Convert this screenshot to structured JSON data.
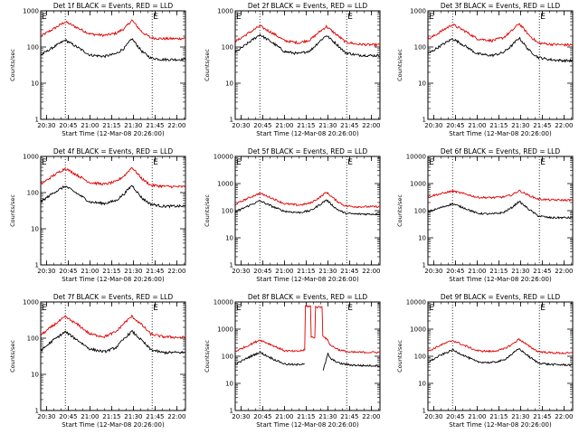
{
  "chart_data": [
    {
      "type": "line",
      "title": "Det 1f BLACK = Events, RED = LLD",
      "xlabel": "Start Time (12-Mar-08 20:26:00)",
      "ylabel": "Counts/sec",
      "yscale": "log",
      "ylim": [
        1,
        1000
      ],
      "y_ticks": [
        "1",
        "10",
        "100",
        "1000"
      ],
      "x_ticks": [
        "20:30",
        "20:45",
        "21:00",
        "21:15",
        "21:30",
        "21:45",
        "22:00"
      ],
      "xlim": [
        "20:26",
        "22:06"
      ],
      "vlines": [
        "20:43",
        "21:43"
      ],
      "corner_marks": [
        "E",
        "E"
      ],
      "series": [
        {
          "color": "#e00000",
          "x": [
            "20:26",
            "20:35",
            "20:43",
            "20:52",
            "21:00",
            "21:10",
            "21:18",
            "21:24",
            "21:29",
            "21:36",
            "21:42",
            "21:50",
            "22:00",
            "22:06"
          ],
          "values": [
            200,
            320,
            500,
            330,
            230,
            210,
            240,
            330,
            550,
            260,
            180,
            170,
            170,
            175
          ]
        },
        {
          "color": "#000000",
          "x": [
            "20:26",
            "20:35",
            "20:43",
            "20:52",
            "21:00",
            "21:10",
            "21:18",
            "21:24",
            "21:29",
            "21:36",
            "21:42",
            "21:50",
            "22:00",
            "22:06"
          ],
          "values": [
            60,
            100,
            155,
            95,
            60,
            55,
            65,
            95,
            170,
            75,
            50,
            45,
            45,
            45
          ]
        }
      ]
    },
    {
      "type": "line",
      "title": "Det 2f BLACK = Events, RED = LLD",
      "xlabel": "Start Time (12-Mar-08 20:26:00)",
      "ylabel": "Counts/sec",
      "yscale": "log",
      "ylim": [
        1,
        1000
      ],
      "y_ticks": [
        "1",
        "10",
        "100",
        "1000"
      ],
      "x_ticks": [
        "20:30",
        "20:45",
        "21:00",
        "21:15",
        "21:30",
        "21:45",
        "22:00"
      ],
      "xlim": [
        "20:26",
        "22:06"
      ],
      "vlines": [
        "20:43",
        "21:43"
      ],
      "corner_marks": [
        "E",
        "E"
      ],
      "series": [
        {
          "color": "#e00000",
          "x": [
            "20:26",
            "20:35",
            "20:43",
            "20:52",
            "21:00",
            "21:10",
            "21:18",
            "21:24",
            "21:29",
            "21:36",
            "21:42",
            "21:50",
            "22:00",
            "22:06"
          ],
          "values": [
            140,
            240,
            380,
            240,
            150,
            130,
            160,
            260,
            370,
            220,
            140,
            120,
            115,
            115
          ]
        },
        {
          "color": "#000000",
          "x": [
            "20:26",
            "20:35",
            "20:43",
            "20:52",
            "21:00",
            "21:10",
            "21:18",
            "21:24",
            "21:29",
            "21:36",
            "21:42",
            "21:50",
            "22:00",
            "22:06"
          ],
          "values": [
            70,
            130,
            220,
            130,
            75,
            65,
            80,
            140,
            210,
            120,
            70,
            60,
            58,
            58
          ]
        }
      ]
    },
    {
      "type": "line",
      "title": "Det 3f BLACK = Events, RED = LLD",
      "xlabel": "Start Time (12-Mar-08 20:26:00)",
      "ylabel": "Counts/sec",
      "yscale": "log",
      "ylim": [
        1,
        1000
      ],
      "y_ticks": [
        "1",
        "10",
        "100",
        "1000"
      ],
      "x_ticks": [
        "20:30",
        "20:45",
        "21:00",
        "21:15",
        "21:30",
        "21:45",
        "22:00"
      ],
      "xlim": [
        "20:26",
        "22:06"
      ],
      "vlines": [
        "20:43",
        "21:43"
      ],
      "corner_marks": [
        "E",
        "E"
      ],
      "series": [
        {
          "color": "#e00000",
          "x": [
            "20:26",
            "20:35",
            "20:43",
            "20:52",
            "21:00",
            "21:10",
            "21:18",
            "21:24",
            "21:29",
            "21:36",
            "21:42",
            "21:50",
            "22:00",
            "22:06"
          ],
          "values": [
            160,
            270,
            420,
            270,
            170,
            150,
            180,
            280,
            450,
            210,
            130,
            120,
            115,
            115
          ]
        },
        {
          "color": "#000000",
          "x": [
            "20:26",
            "20:35",
            "20:43",
            "20:52",
            "21:00",
            "21:10",
            "21:18",
            "21:24",
            "21:29",
            "21:36",
            "21:42",
            "21:50",
            "22:00",
            "22:06"
          ],
          "values": [
            65,
            110,
            170,
            105,
            65,
            58,
            70,
            110,
            180,
            80,
            52,
            45,
            42,
            42
          ]
        }
      ]
    },
    {
      "type": "line",
      "title": "Det 4f BLACK = Events, RED = LLD",
      "xlabel": "Start Time (12-Mar-08 20:26:00)",
      "ylabel": "Counts/sec",
      "yscale": "log",
      "ylim": [
        1,
        1000
      ],
      "y_ticks": [
        "1",
        "10",
        "100",
        "1000"
      ],
      "x_ticks": [
        "20:30",
        "20:45",
        "21:00",
        "21:15",
        "21:30",
        "21:45",
        "22:00"
      ],
      "xlim": [
        "20:26",
        "22:06"
      ],
      "vlines": [
        "20:43",
        "21:43"
      ],
      "corner_marks": [
        "E",
        "E"
      ],
      "series": [
        {
          "color": "#e00000",
          "x": [
            "20:26",
            "20:35",
            "20:43",
            "20:52",
            "21:00",
            "21:10",
            "21:18",
            "21:24",
            "21:29",
            "21:36",
            "21:42",
            "21:50",
            "22:00",
            "22:06"
          ],
          "values": [
            170,
            300,
            470,
            290,
            190,
            170,
            200,
            300,
            500,
            240,
            160,
            150,
            145,
            145
          ]
        },
        {
          "color": "#000000",
          "x": [
            "20:26",
            "20:35",
            "20:43",
            "20:52",
            "21:00",
            "21:10",
            "21:18",
            "21:24",
            "21:29",
            "21:36",
            "21:42",
            "21:50",
            "22:00",
            "22:06"
          ],
          "values": [
            55,
            100,
            150,
            90,
            55,
            50,
            60,
            95,
            160,
            70,
            48,
            42,
            42,
            42
          ]
        }
      ]
    },
    {
      "type": "line",
      "title": "Det 5f BLACK = Events, RED = LLD",
      "xlabel": "Start Time (12-Mar-08 20:26:00)",
      "ylabel": "Counts/sec",
      "yscale": "log",
      "ylim": [
        1,
        10000
      ],
      "y_ticks": [
        "1",
        "10",
        "100",
        "1000",
        "10000"
      ],
      "x_ticks": [
        "20:30",
        "20:45",
        "21:00",
        "21:15",
        "21:30",
        "21:45",
        "22:00"
      ],
      "xlim": [
        "20:26",
        "22:06"
      ],
      "vlines": [
        "20:43",
        "21:43"
      ],
      "corner_marks": [
        "E",
        "E"
      ],
      "series": [
        {
          "color": "#e00000",
          "x": [
            "20:26",
            "20:35",
            "20:43",
            "20:52",
            "21:00",
            "21:10",
            "21:18",
            "21:24",
            "21:29",
            "21:36",
            "21:42",
            "21:50",
            "22:00",
            "22:06"
          ],
          "values": [
            170,
            290,
            440,
            280,
            180,
            160,
            190,
            300,
            480,
            230,
            150,
            140,
            140,
            140
          ]
        },
        {
          "color": "#000000",
          "x": [
            "20:26",
            "20:35",
            "20:43",
            "20:52",
            "21:00",
            "21:10",
            "21:18",
            "21:24",
            "21:29",
            "21:36",
            "21:42",
            "21:50",
            "22:00",
            "22:06"
          ],
          "values": [
            90,
            150,
            230,
            140,
            95,
            85,
            100,
            160,
            250,
            115,
            80,
            75,
            75,
            75
          ]
        }
      ]
    },
    {
      "type": "line",
      "title": "Det 6f BLACK = Events, RED = LLD",
      "xlabel": "Start Time (12-Mar-08 20:26:00)",
      "ylabel": "Counts/sec",
      "yscale": "log",
      "ylim": [
        1,
        10000
      ],
      "y_ticks": [
        "1",
        "10",
        "100",
        "1000",
        "10000"
      ],
      "x_ticks": [
        "20:30",
        "20:45",
        "21:00",
        "21:15",
        "21:30",
        "21:45",
        "22:00"
      ],
      "xlim": [
        "20:26",
        "22:06"
      ],
      "vlines": [
        "20:43",
        "21:43"
      ],
      "corner_marks": [
        "E",
        "E"
      ],
      "series": [
        {
          "color": "#e00000",
          "x": [
            "20:26",
            "20:35",
            "20:43",
            "20:52",
            "21:00",
            "21:10",
            "21:18",
            "21:24",
            "21:29",
            "21:36",
            "21:42",
            "21:50",
            "22:00",
            "22:06"
          ],
          "values": [
            330,
            420,
            530,
            410,
            310,
            300,
            320,
            380,
            550,
            360,
            270,
            250,
            245,
            245
          ]
        },
        {
          "color": "#000000",
          "x": [
            "20:26",
            "20:35",
            "20:43",
            "20:52",
            "21:00",
            "21:10",
            "21:18",
            "21:24",
            "21:29",
            "21:36",
            "21:42",
            "21:50",
            "22:00",
            "22:06"
          ],
          "values": [
            90,
            130,
            180,
            120,
            80,
            75,
            85,
            130,
            220,
            110,
            65,
            55,
            55,
            55
          ]
        }
      ]
    },
    {
      "type": "line",
      "title": "Det 7f BLACK = Events, RED = LLD",
      "xlabel": "Start Time (12-Mar-08 20:26:00)",
      "ylabel": "Counts/sec",
      "yscale": "log",
      "ylim": [
        1,
        1000
      ],
      "y_ticks": [
        "1",
        "10",
        "100",
        "1000"
      ],
      "x_ticks": [
        "20:30",
        "20:45",
        "21:00",
        "21:15",
        "21:30",
        "21:45",
        "22:00"
      ],
      "xlim": [
        "20:26",
        "22:06"
      ],
      "vlines": [
        "20:43",
        "21:43"
      ],
      "corner_marks": [
        "E",
        "E"
      ],
      "series": [
        {
          "color": "#e00000",
          "x": [
            "20:26",
            "20:35",
            "20:43",
            "20:52",
            "21:00",
            "21:10",
            "21:18",
            "21:24",
            "21:29",
            "21:36",
            "21:42",
            "21:50",
            "22:00",
            "22:06"
          ],
          "values": [
            120,
            230,
            390,
            230,
            130,
            110,
            150,
            270,
            400,
            230,
            130,
            110,
            105,
            105
          ]
        },
        {
          "color": "#000000",
          "x": [
            "20:26",
            "20:35",
            "20:43",
            "20:52",
            "21:00",
            "21:10",
            "21:18",
            "21:24",
            "21:29",
            "21:36",
            "21:42",
            "21:50",
            "22:00",
            "22:06"
          ],
          "values": [
            45,
            90,
            150,
            85,
            50,
            42,
            55,
            100,
            155,
            85,
            48,
            40,
            40,
            40
          ]
        }
      ]
    },
    {
      "type": "line",
      "title": "Det 8f BLACK = Events, RED = LLD",
      "xlabel": "Start Time (12-Mar-08 20:26:00)",
      "ylabel": "Counts/sec",
      "yscale": "log",
      "ylim": [
        1,
        10000
      ],
      "y_ticks": [
        "1",
        "10",
        "100",
        "1000",
        "10000"
      ],
      "x_ticks": [
        "20:30",
        "20:45",
        "21:00",
        "21:15",
        "21:30",
        "21:45",
        "22:00"
      ],
      "xlim": [
        "20:26",
        "22:06"
      ],
      "vlines": [
        "20:43",
        "21:43"
      ],
      "corner_marks": [
        "E",
        "E"
      ],
      "series": [
        {
          "color": "#e00000",
          "x": [
            "20:26",
            "20:35",
            "20:43",
            "20:52",
            "21:00",
            "21:08",
            "21:14",
            "21:14.5",
            "21:18",
            "21:19",
            "21:21",
            "21:22",
            "21:26",
            "21:26.5",
            "21:30",
            "21:32",
            "21:38",
            "21:45",
            "21:55",
            "22:06"
          ],
          "values": [
            150,
            250,
            400,
            250,
            160,
            150,
            170,
            7000,
            7000,
            500,
            500,
            6500,
            6500,
            600,
            380,
            250,
            170,
            140,
            140,
            140
          ]
        },
        {
          "color": "#000000",
          "x": [
            "20:26",
            "20:35",
            "20:43",
            "20:52",
            "21:00",
            "21:08",
            "21:14",
            "21:26.5",
            "21:26.8",
            "21:30",
            "21:32",
            "21:38",
            "21:45",
            "21:55",
            "22:06"
          ],
          "values": [
            50,
            90,
            140,
            80,
            52,
            48,
            55,
            null,
            30,
            120,
            80,
            55,
            48,
            45,
            45
          ]
        }
      ]
    },
    {
      "type": "line",
      "title": "Det 9f BLACK = Events, RED = LLD",
      "xlabel": "Start Time (12-Mar-08 20:26:00)",
      "ylabel": "Counts/sec",
      "yscale": "log",
      "ylim": [
        1,
        10000
      ],
      "y_ticks": [
        "1",
        "10",
        "100",
        "1000",
        "10000"
      ],
      "x_ticks": [
        "20:30",
        "20:45",
        "21:00",
        "21:15",
        "21:30",
        "21:45",
        "22:00"
      ],
      "xlim": [
        "20:26",
        "22:06"
      ],
      "vlines": [
        "20:43",
        "21:43"
      ],
      "corner_marks": [
        "E",
        "E"
      ],
      "series": [
        {
          "color": "#e00000",
          "x": [
            "20:26",
            "20:35",
            "20:43",
            "20:52",
            "21:00",
            "21:10",
            "21:18",
            "21:24",
            "21:29",
            "21:36",
            "21:42",
            "21:50",
            "22:00",
            "22:06"
          ],
          "values": [
            150,
            260,
            380,
            240,
            160,
            150,
            180,
            270,
            430,
            230,
            150,
            135,
            130,
            130
          ]
        },
        {
          "color": "#000000",
          "x": [
            "20:26",
            "20:35",
            "20:43",
            "20:52",
            "21:00",
            "21:10",
            "21:18",
            "21:24",
            "21:29",
            "21:36",
            "21:42",
            "21:50",
            "22:00",
            "22:06"
          ],
          "values": [
            60,
            110,
            170,
            100,
            62,
            58,
            70,
            120,
            190,
            95,
            58,
            50,
            48,
            48
          ]
        }
      ]
    }
  ]
}
